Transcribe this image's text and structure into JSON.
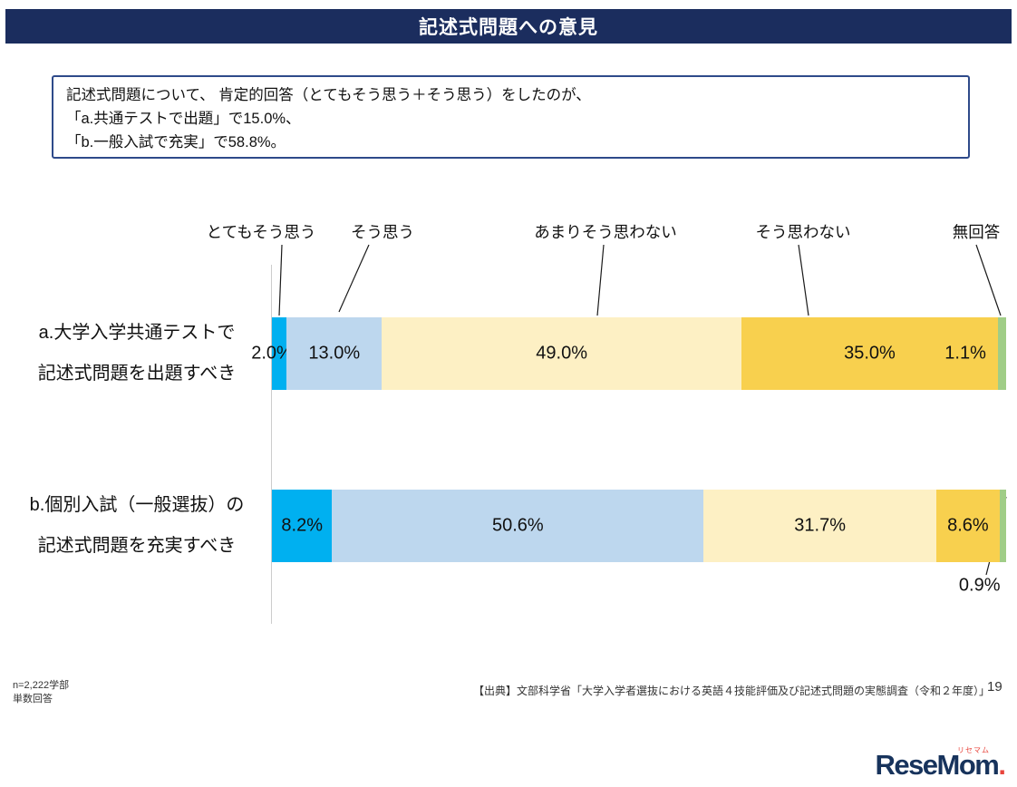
{
  "header": {
    "title": "記述式問題への意見"
  },
  "summary": {
    "lines": [
      "記述式問題について、 肯定的回答（とてもそう思う＋そう思う）をしたのが、",
      "「a.共通テストで出題」で15.0%、",
      "「b.一般入試で充実」で58.8%。"
    ]
  },
  "chart_data": {
    "type": "bar",
    "orientation": "horizontal",
    "stacked": true,
    "unit": "%",
    "xlim": [
      0,
      100
    ],
    "legend": [
      "とてもそう思う",
      "そう思う",
      "あまりそう思わない",
      "そう思わない",
      "無回答"
    ],
    "colors": [
      "#00b0f0",
      "#bdd7ee",
      "#fdf0c4",
      "#f8d04e",
      "#a0cd87"
    ],
    "rows": [
      {
        "label_lines": [
          "a.大学入学共通テストで",
          "記述式問題を出題すべき"
        ],
        "values": [
          2.0,
          13.0,
          49.0,
          35.0,
          1.1
        ],
        "value_labels": [
          "2.0%",
          "13.0%",
          "49.0%",
          "35.0%",
          "1.1%"
        ]
      },
      {
        "label_lines": [
          "b.個別入試（一般選抜）の",
          "記述式問題を充実すべき"
        ],
        "values": [
          8.2,
          50.6,
          31.7,
          8.6,
          0.9
        ],
        "value_labels": [
          "8.2%",
          "50.6%",
          "31.7%",
          "8.6%",
          "0.9%"
        ]
      }
    ]
  },
  "footer": {
    "sample_note_lines": [
      "n=2,222学部",
      "単数回答"
    ],
    "source": "【出典】文部科学省「大学入学者選抜における英語４技能評価及び記述式問題の実態調査（令和２年度）」",
    "page_number": "19"
  },
  "logo": {
    "text": "ReseMom",
    "dot": ".",
    "ruby": "リセマム"
  }
}
